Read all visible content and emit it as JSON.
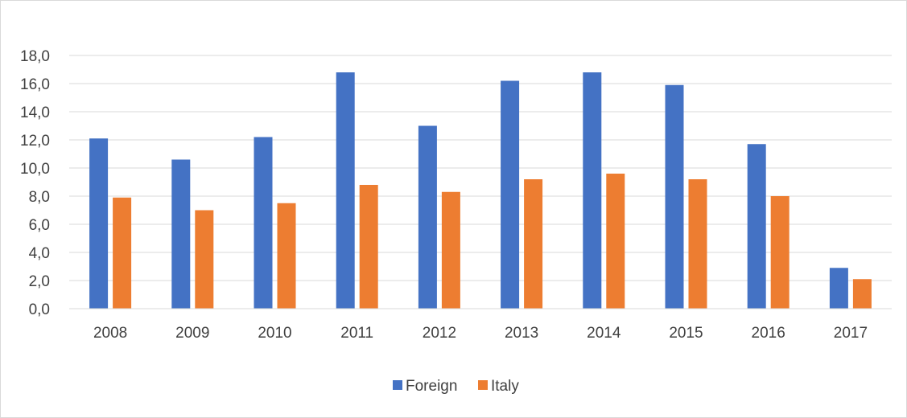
{
  "chart_data": {
    "type": "bar",
    "categories": [
      "2008",
      "2009",
      "2010",
      "2011",
      "2012",
      "2013",
      "2014",
      "2015",
      "2016",
      "2017"
    ],
    "series": [
      {
        "name": "Foreign",
        "color": "#4472c4",
        "values": [
          12.1,
          10.6,
          12.2,
          16.8,
          13.0,
          16.2,
          16.8,
          15.9,
          11.7,
          2.9
        ]
      },
      {
        "name": "Italy",
        "color": "#ed7d31",
        "values": [
          7.9,
          7.0,
          7.5,
          8.8,
          8.3,
          9.2,
          9.6,
          9.2,
          8.0,
          2.1
        ]
      }
    ],
    "y_ticks": [
      "0,0",
      "2,0",
      "4,0",
      "6,0",
      "8,0",
      "10,0",
      "12,0",
      "14,0",
      "16,0",
      "18,0"
    ],
    "ylim": [
      0,
      18
    ],
    "y_step": 2,
    "grid": true,
    "legend_position": "bottom",
    "title": "",
    "xlabel": "",
    "ylabel": ""
  }
}
